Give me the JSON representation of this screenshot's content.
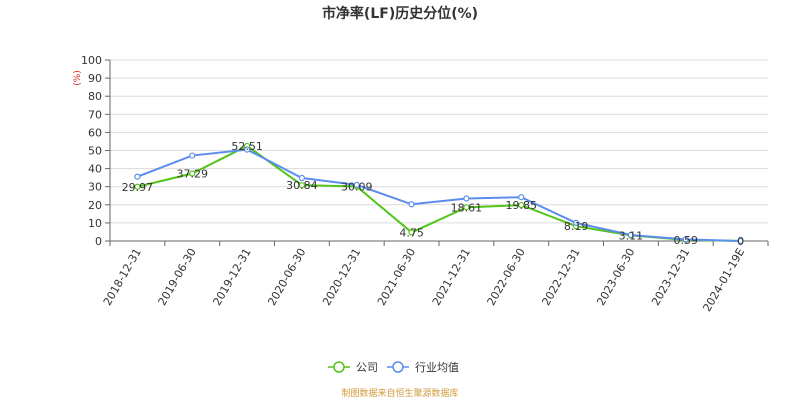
{
  "chart_data": {
    "type": "line",
    "title": "市净率(LF)历史分位(%)",
    "y_unit": "(%)",
    "ylim": [
      0,
      100
    ],
    "y_ticks": [
      0,
      10,
      20,
      30,
      40,
      50,
      60,
      70,
      80,
      90,
      100
    ],
    "categories": [
      "2018-12-31",
      "2019-06-30",
      "2019-12-31",
      "2020-06-30",
      "2020-12-31",
      "2021-06-30",
      "2021-12-31",
      "2022-06-30",
      "2022-12-31",
      "2023-06-30",
      "2023-12-31",
      "2024-01-19E"
    ],
    "series": [
      {
        "name": "公司",
        "color": "#52c41a",
        "values": [
          29.97,
          37.29,
          52.51,
          30.84,
          30.09,
          4.75,
          18.61,
          19.85,
          8.19,
          3.11,
          0.59,
          0
        ],
        "labels": [
          "29.97",
          "37.29",
          "52.51",
          "30.84",
          "30.09",
          "4.75",
          "18.61",
          "19.85",
          "8.19",
          "3.11",
          "0.59",
          "0"
        ]
      },
      {
        "name": "行业均值",
        "color": "#5b8def",
        "values": [
          35.5,
          47.2,
          50.5,
          34.8,
          31.0,
          20.3,
          23.5,
          24.2,
          10.0,
          3.3,
          0.9,
          0
        ]
      }
    ],
    "grid": true,
    "legend_position": "bottom",
    "source": "制图数据来自恒生聚源数据库"
  }
}
